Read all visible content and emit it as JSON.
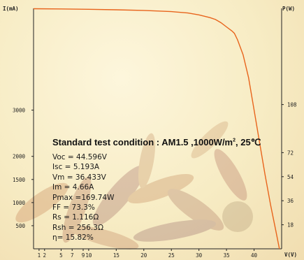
{
  "chart_data": {
    "type": "line",
    "x_axis": {
      "label": "V(V)",
      "range": [
        0,
        45
      ],
      "ticks": [
        {
          "value": 1,
          "label": "1"
        },
        {
          "value": 2,
          "label": "2"
        },
        {
          "value": 5,
          "label": "5"
        },
        {
          "value": 7,
          "label": "7"
        },
        {
          "value": 9,
          "label": "9"
        },
        {
          "value": 10,
          "label": "10"
        },
        {
          "value": 15,
          "label": "15"
        },
        {
          "value": 20,
          "label": "20"
        },
        {
          "value": 25,
          "label": "25"
        },
        {
          "value": 30,
          "label": "30"
        },
        {
          "value": 35,
          "label": "35"
        },
        {
          "value": 40,
          "label": "40"
        }
      ]
    },
    "y_axis_left": {
      "label": "I(mA)",
      "range": [
        0,
        5200
      ],
      "ticks": [
        500,
        1000,
        1500,
        2000,
        3000
      ]
    },
    "y_axis_right": {
      "label": "P(W)",
      "ticks": [
        18,
        36,
        54,
        72,
        108
      ]
    },
    "series": [
      {
        "color": "#e8641c",
        "x": [
          0,
          5,
          10,
          15,
          20,
          25,
          28,
          30,
          32,
          33,
          34,
          35,
          36,
          36.433,
          37,
          38,
          39,
          40,
          41,
          42,
          43,
          44,
          44.596
        ],
        "y": [
          5193,
          5188,
          5180,
          5170,
          5156,
          5130,
          5100,
          5060,
          5000,
          4960,
          4890,
          4800,
          4710,
          4660,
          4520,
          4200,
          3700,
          3000,
          2300,
          1600,
          950,
          360,
          0
        ]
      }
    ],
    "annotation": {
      "heading_main": "Standard test condition : AM1.5 ,1000W/m",
      "heading_sup": "2",
      "heading_tail": ", 25℃",
      "lines": [
        "Voc = 44.596V",
        "Isc = 5.193A",
        "Vm = 36.433V",
        "Im = 4.66A",
        "Pmax =169.74W",
        "FF = 73.3%",
        "Rs = 1.116Ω",
        "Rsh = 256.3Ω",
        "η= 15.82%"
      ]
    }
  }
}
